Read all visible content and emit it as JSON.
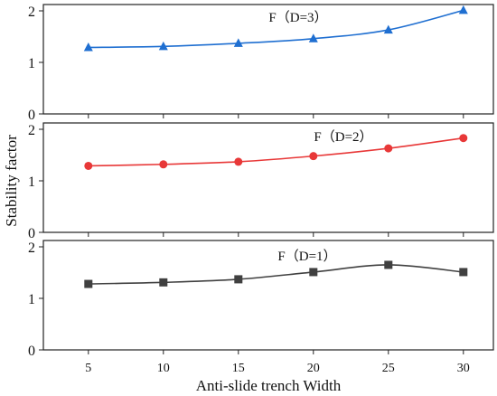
{
  "chart_data": {
    "type": "line",
    "xlabel": "Anti-slide trench Width",
    "ylabel": "Stability factor",
    "x": [
      5,
      10,
      15,
      20,
      25,
      30
    ],
    "xlim": [
      2,
      32
    ],
    "ylim": [
      0,
      2
    ],
    "yticks": [
      0,
      1,
      2
    ],
    "grid": false,
    "panels": [
      {
        "label": "F（D=3）",
        "color": "#1f6fd1",
        "marker": "triangle",
        "values": [
          1.29,
          1.31,
          1.37,
          1.46,
          1.63,
          2.01
        ]
      },
      {
        "label": "F（D=2）",
        "color": "#e83838",
        "marker": "circle",
        "values": [
          1.29,
          1.32,
          1.37,
          1.48,
          1.63,
          1.83
        ]
      },
      {
        "label": "F（D=1）",
        "color": "#404040",
        "marker": "square",
        "values": [
          1.28,
          1.31,
          1.37,
          1.51,
          1.65,
          1.51
        ]
      }
    ]
  }
}
